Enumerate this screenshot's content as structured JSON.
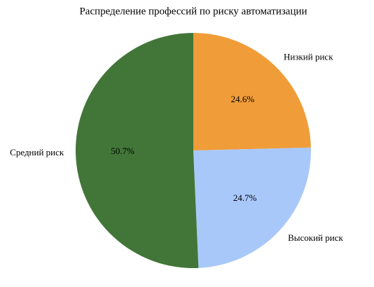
{
  "chart_data": {
    "type": "pie",
    "title": "Распределение профессий по риску автоматизации",
    "categories": [
      "Низкий риск",
      "Высокий риск",
      "Средний риск"
    ],
    "values": [
      24.6,
      24.7,
      50.7
    ],
    "value_labels": [
      "24.6%",
      "24.7%",
      "50.7%"
    ],
    "colors": [
      "#f09c38",
      "#a9c8fa",
      "#427638"
    ]
  }
}
